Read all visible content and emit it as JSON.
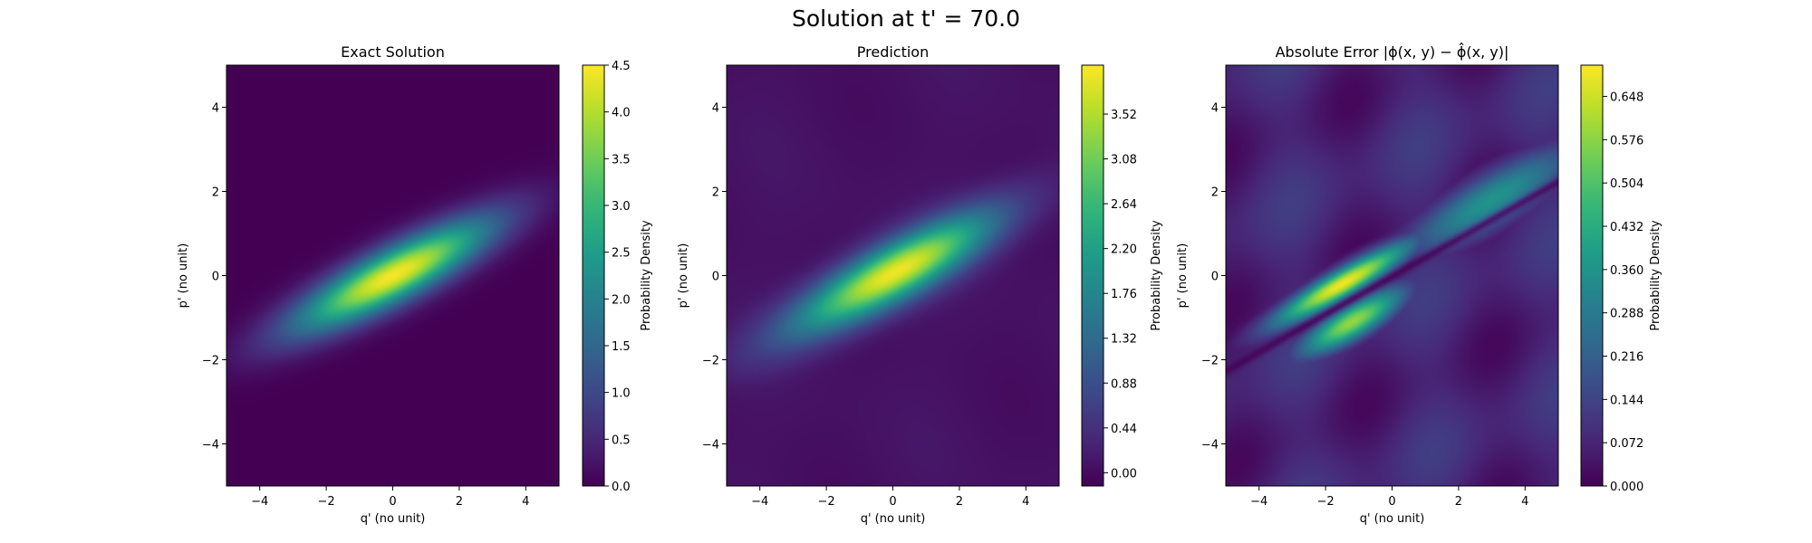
{
  "figure": {
    "suptitle": "Solution at t' = 70.0"
  },
  "colors": {
    "viridis": [
      "#440154",
      "#482878",
      "#3e4989",
      "#31688e",
      "#26828e",
      "#1f9e89",
      "#35b779",
      "#6ece58",
      "#b5de2b",
      "#fde725"
    ]
  },
  "chart_data": [
    {
      "type": "heatmap",
      "title": "Exact Solution",
      "xlabel": "q' (no unit)",
      "ylabel": "p' (no unit)",
      "xlim": [
        -5,
        5
      ],
      "ylim": [
        -5,
        5
      ],
      "xticks": [
        -4,
        -2,
        0,
        2,
        4
      ],
      "yticks": [
        -4,
        -2,
        0,
        2,
        4
      ],
      "xtick_labels": [
        "−4",
        "−2",
        "0",
        "2",
        "4"
      ],
      "ytick_labels": [
        "−4",
        "−2",
        "0",
        "2",
        "4"
      ],
      "colorbar_label": "Probability Density",
      "colorbar_range": [
        0.0,
        4.5
      ],
      "colorbar_ticks": [
        0.0,
        0.5,
        1.0,
        1.5,
        2.0,
        2.5,
        3.0,
        3.5,
        4.0,
        4.5
      ],
      "colorbar_tick_labels": [
        "0.0",
        "0.5",
        "1.0",
        "1.5",
        "2.0",
        "2.5",
        "3.0",
        "3.5",
        "4.0",
        "4.5"
      ],
      "field": {
        "description": "single tilted elongated gaussian",
        "peak": 4.45,
        "center": [
          0.0,
          0.0
        ],
        "slope": 0.4,
        "sigma_along": 2.2,
        "sigma_across": 0.45,
        "background": 0.0
      }
    },
    {
      "type": "heatmap",
      "title": "Prediction",
      "xlabel": "q' (no unit)",
      "ylabel": "p' (no unit)",
      "xlim": [
        -5,
        5
      ],
      "ylim": [
        -5,
        5
      ],
      "xticks": [
        -4,
        -2,
        0,
        2,
        4
      ],
      "yticks": [
        -4,
        -2,
        0,
        2,
        4
      ],
      "xtick_labels": [
        "−4",
        "−2",
        "0",
        "2",
        "4"
      ],
      "ytick_labels": [
        "−4",
        "−2",
        "0",
        "2",
        "4"
      ],
      "colorbar_label": "Probability Density",
      "colorbar_range": [
        -0.13,
        4.0
      ],
      "colorbar_ticks": [
        0.0,
        0.44,
        0.88,
        1.32,
        1.76,
        2.2,
        2.64,
        3.08,
        3.52
      ],
      "colorbar_tick_labels": [
        "0.00",
        "0.44",
        "0.88",
        "1.32",
        "1.76",
        "2.20",
        "2.64",
        "3.08",
        "3.52"
      ],
      "field": {
        "description": "tilted gaussian with faint background ripples",
        "peak": 3.85,
        "center": [
          0.0,
          0.05
        ],
        "slope": 0.42,
        "sigma_along": 2.25,
        "sigma_across": 0.48,
        "background": 0.12
      }
    },
    {
      "type": "heatmap",
      "title": "Absolute Error |ϕ(x, y) − ϕ̂(x, y)|",
      "xlabel": "q' (no unit)",
      "ylabel": "p' (no unit)",
      "xlim": [
        -5,
        5
      ],
      "ylim": [
        -5,
        5
      ],
      "xticks": [
        -4,
        -2,
        0,
        2,
        4
      ],
      "yticks": [
        -4,
        -2,
        0,
        2,
        4
      ],
      "xtick_labels": [
        "−4",
        "−2",
        "0",
        "2",
        "4"
      ],
      "ytick_labels": [
        "−4",
        "−2",
        "0",
        "2",
        "4"
      ],
      "colorbar_label": "Probability Density",
      "colorbar_range": [
        0.0,
        0.7
      ],
      "colorbar_ticks": [
        0.0,
        0.072,
        0.144,
        0.216,
        0.288,
        0.36,
        0.432,
        0.504,
        0.576,
        0.648
      ],
      "colorbar_tick_labels": [
        "0.000",
        "0.072",
        "0.144",
        "0.216",
        "0.288",
        "0.360",
        "0.432",
        "0.504",
        "0.576",
        "0.648"
      ],
      "field": {
        "description": "two parallel error ridges with a dark nodal line between them, plus wavy background",
        "peak": 0.69,
        "upper_ridge": {
          "center": [
            -1.5,
            -0.2
          ],
          "slope": 0.45,
          "sigma_along": 1.6,
          "sigma_across": 0.25
        },
        "lower_ridge": {
          "center": [
            -1.2,
            -1.1
          ],
          "slope": 0.45,
          "sigma_along": 1.2,
          "sigma_across": 0.3
        },
        "outer_band": {
          "center": [
            3.0,
            1.8
          ],
          "slope": 0.45,
          "sigma_along": 2.0,
          "sigma_across": 0.45,
          "level": 0.36
        },
        "background": 0.13
      }
    }
  ]
}
